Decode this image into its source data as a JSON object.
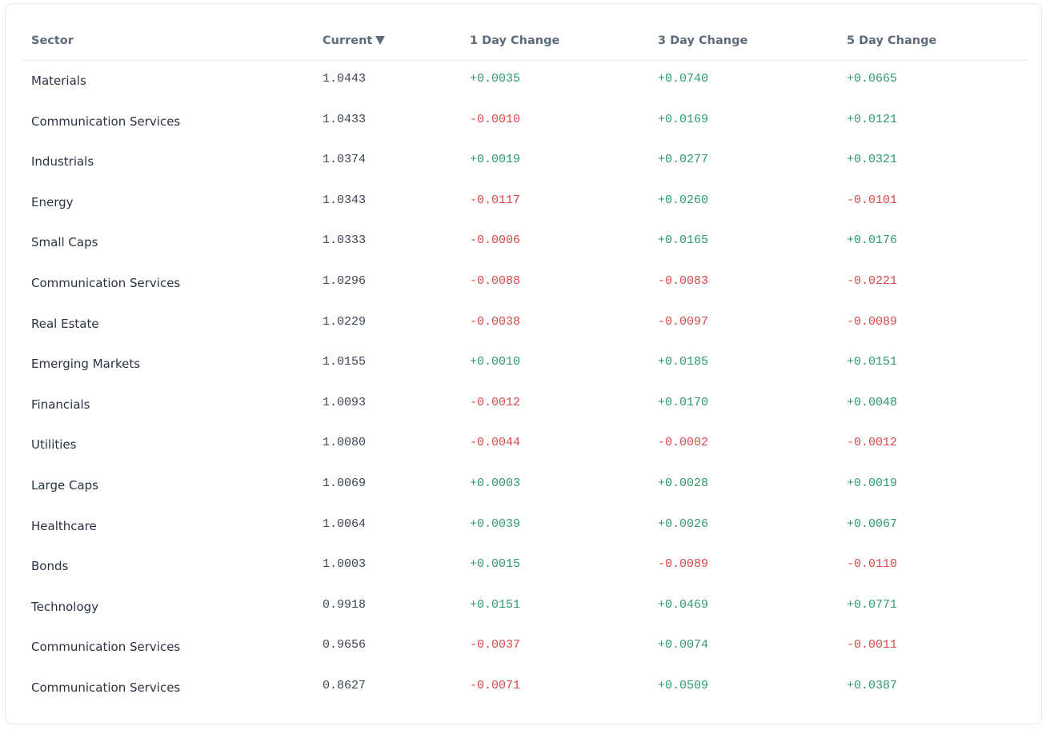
{
  "table": {
    "headers": {
      "sector": "Sector",
      "current": "Current",
      "day1": "1 Day Change",
      "day3": "3 Day Change",
      "day5": "5 Day Change"
    },
    "sort_icon": "sort-desc-triangle-icon",
    "colors": {
      "positive": "#2e9a6e",
      "negative": "#d8494a",
      "header_text": "#5e6b7c"
    },
    "rows": [
      {
        "sector": "Materials",
        "current": "1.0443",
        "day1": "+0.0035",
        "day3": "+0.0740",
        "day5": "+0.0665"
      },
      {
        "sector": "Communication Services",
        "current": "1.0433",
        "day1": "-0.0010",
        "day3": "+0.0169",
        "day5": "+0.0121"
      },
      {
        "sector": "Industrials",
        "current": "1.0374",
        "day1": "+0.0019",
        "day3": "+0.0277",
        "day5": "+0.0321"
      },
      {
        "sector": "Energy",
        "current": "1.0343",
        "day1": "-0.0117",
        "day3": "+0.0260",
        "day5": "-0.0101"
      },
      {
        "sector": "Small Caps",
        "current": "1.0333",
        "day1": "-0.0006",
        "day3": "+0.0165",
        "day5": "+0.0176"
      },
      {
        "sector": "Communication Services",
        "current": "1.0296",
        "day1": "-0.0088",
        "day3": "-0.0083",
        "day5": "-0.0221"
      },
      {
        "sector": "Real Estate",
        "current": "1.0229",
        "day1": "-0.0038",
        "day3": "-0.0097",
        "day5": "-0.0089"
      },
      {
        "sector": "Emerging Markets",
        "current": "1.0155",
        "day1": "+0.0010",
        "day3": "+0.0185",
        "day5": "+0.0151"
      },
      {
        "sector": "Financials",
        "current": "1.0093",
        "day1": "-0.0012",
        "day3": "+0.0170",
        "day5": "+0.0048"
      },
      {
        "sector": "Utilities",
        "current": "1.0080",
        "day1": "-0.0044",
        "day3": "-0.0002",
        "day5": "-0.0012"
      },
      {
        "sector": "Large Caps",
        "current": "1.0069",
        "day1": "+0.0003",
        "day3": "+0.0028",
        "day5": "+0.0019"
      },
      {
        "sector": "Healthcare",
        "current": "1.0064",
        "day1": "+0.0039",
        "day3": "+0.0026",
        "day5": "+0.0067"
      },
      {
        "sector": "Bonds",
        "current": "1.0003",
        "day1": "+0.0015",
        "day3": "-0.0089",
        "day5": "-0.0110"
      },
      {
        "sector": "Technology",
        "current": "0.9918",
        "day1": "+0.0151",
        "day3": "+0.0469",
        "day5": "+0.0771"
      },
      {
        "sector": "Communication Services",
        "current": "0.9656",
        "day1": "-0.0037",
        "day3": "+0.0074",
        "day5": "-0.0011"
      },
      {
        "sector": "Communication Services",
        "current": "0.8627",
        "day1": "-0.0071",
        "day3": "+0.0509",
        "day5": "+0.0387"
      }
    ]
  }
}
